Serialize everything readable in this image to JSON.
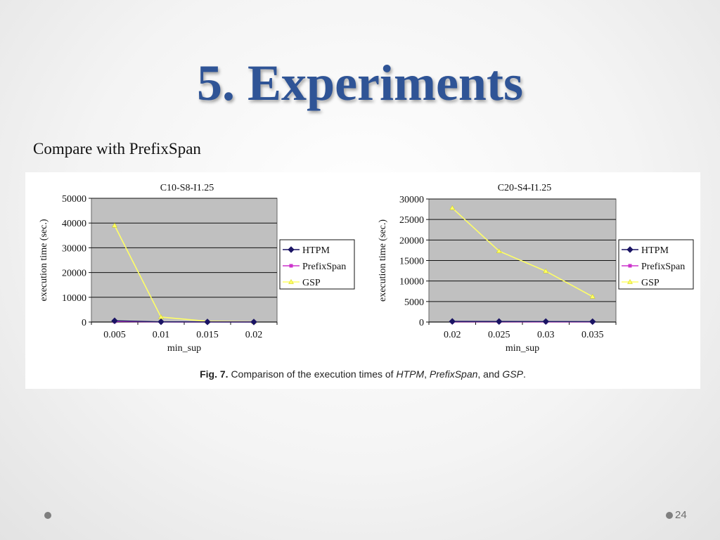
{
  "slide": {
    "title": "5. Experiments",
    "subtitle": "Compare with PrefixSpan",
    "page_number": "24"
  },
  "figure": {
    "caption_label": "Fig. 7.",
    "caption_parts": [
      {
        "text": "Comparison of the execution times of ",
        "italic": false
      },
      {
        "text": "HTPM",
        "italic": true
      },
      {
        "text": ", ",
        "italic": false
      },
      {
        "text": "PrefixSpan",
        "italic": true
      },
      {
        "text": ", and ",
        "italic": false
      },
      {
        "text": "GSP",
        "italic": true
      },
      {
        "text": ".",
        "italic": false
      }
    ]
  },
  "colors": {
    "HTPM": "#1a1464",
    "PrefixSpan": "#cc33cc",
    "GSP": "#ffff66",
    "plot_bg": "#c0c0c0",
    "title": "#2f5496"
  },
  "chart_data": [
    {
      "type": "line",
      "title": "C10-S8-I1.25",
      "xlabel": "min_sup",
      "ylabel": "execution time (sec.)",
      "categories": [
        "0.005",
        "0.01",
        "0.015",
        "0.02"
      ],
      "ylim": [
        0,
        50000
      ],
      "yticks": [
        "0",
        "10000",
        "20000",
        "30000",
        "40000",
        "50000"
      ],
      "grid": true,
      "legend": "right",
      "series": [
        {
          "name": "HTPM",
          "values": [
            500,
            100,
            50,
            20
          ],
          "marker": "diamond"
        },
        {
          "name": "PrefixSpan",
          "values": [
            200,
            50,
            20,
            10
          ],
          "marker": "square"
        },
        {
          "name": "GSP",
          "values": [
            39000,
            2000,
            300,
            100
          ],
          "marker": "triangle"
        }
      ]
    },
    {
      "type": "line",
      "title": "C20-S4-I1.25",
      "xlabel": "min_sup",
      "ylabel": "execution time (sec.)",
      "categories": [
        "0.02",
        "0.025",
        "0.03",
        "0.035"
      ],
      "ylim": [
        0,
        30000
      ],
      "yticks": [
        "0",
        "5000",
        "10000",
        "15000",
        "20000",
        "25000",
        "30000"
      ],
      "grid": true,
      "legend": "right",
      "series": [
        {
          "name": "HTPM",
          "values": [
            150,
            130,
            120,
            100
          ],
          "marker": "diamond"
        },
        {
          "name": "PrefixSpan",
          "values": [
            60,
            50,
            40,
            30
          ],
          "marker": "square"
        },
        {
          "name": "GSP",
          "values": [
            27800,
            17300,
            12400,
            6200
          ],
          "marker": "triangle"
        }
      ]
    }
  ]
}
